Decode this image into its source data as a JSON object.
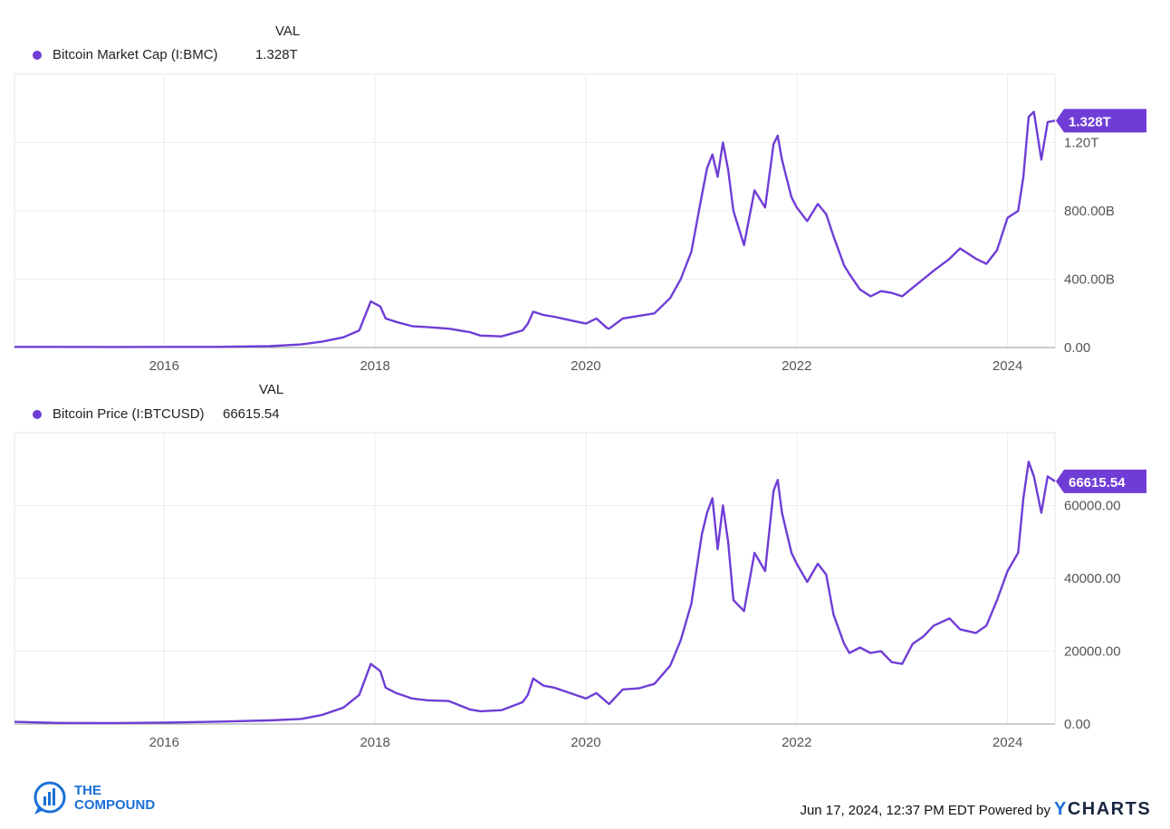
{
  "chart_data": [
    {
      "type": "line",
      "val_header": "VAL",
      "series": [
        {
          "name": "Bitcoin Market Cap (I:BMC)",
          "last_value_label": "1.328T",
          "color": "#6f3dd6",
          "x": [
            2014.58,
            2015.0,
            2015.5,
            2016.0,
            2016.5,
            2017.0,
            2017.3,
            2017.5,
            2017.7,
            2017.85,
            2017.96,
            2018.05,
            2018.1,
            2018.2,
            2018.35,
            2018.5,
            2018.7,
            2018.9,
            2019.0,
            2019.2,
            2019.4,
            2019.45,
            2019.5,
            2019.6,
            2019.7,
            2019.85,
            2020.0,
            2020.1,
            2020.2,
            2020.22,
            2020.35,
            2020.5,
            2020.65,
            2020.8,
            2020.9,
            2021.0,
            2021.1,
            2021.15,
            2021.2,
            2021.25,
            2021.3,
            2021.35,
            2021.4,
            2021.5,
            2021.6,
            2021.7,
            2021.78,
            2021.82,
            2021.86,
            2021.95,
            2022.0,
            2022.1,
            2022.2,
            2022.28,
            2022.35,
            2022.45,
            2022.5,
            2022.6,
            2022.7,
            2022.8,
            2022.9,
            2023.0,
            2023.1,
            2023.2,
            2023.3,
            2023.45,
            2023.55,
            2023.7,
            2023.8,
            2023.9,
            2024.0,
            2024.1,
            2024.15,
            2024.2,
            2024.25,
            2024.32,
            2024.38,
            2024.45
          ],
          "values": [
            3.5,
            3.5,
            3.3,
            3.5,
            3.8,
            8,
            18,
            35,
            60,
            100,
            270,
            240,
            170,
            150,
            125,
            120,
            110,
            90,
            70,
            65,
            100,
            140,
            210,
            190,
            180,
            160,
            140,
            170,
            115,
            110,
            170,
            185,
            200,
            290,
            400,
            560,
            890,
            1050,
            1130,
            1000,
            1200,
            1040,
            800,
            600,
            920,
            820,
            1190,
            1240,
            1100,
            880,
            820,
            740,
            840,
            780,
            650,
            480,
            430,
            340,
            300,
            330,
            320,
            300,
            350,
            400,
            450,
            520,
            580,
            520,
            490,
            570,
            760,
            800,
            1000,
            1350,
            1380,
            1100,
            1320,
            1328
          ]
        }
      ],
      "x_ticks": [
        "2016",
        "2018",
        "2020",
        "2022",
        "2024"
      ],
      "x_tick_values": [
        2016,
        2018,
        2020,
        2022,
        2024
      ],
      "y_ticks": [
        "0.00",
        "400.00B",
        "800.00B",
        "1.20T"
      ],
      "y_tick_values": [
        0,
        400,
        800,
        1200
      ],
      "ylim": [
        0,
        1600
      ],
      "xlim": [
        2014.58,
        2024.45
      ],
      "grid": true
    },
    {
      "type": "line",
      "val_header": "VAL",
      "series": [
        {
          "name": "Bitcoin Price (I:BTCUSD)",
          "last_value_label": "66615.54",
          "color": "#6f3dd6",
          "x": [
            2014.58,
            2015.0,
            2015.5,
            2016.0,
            2016.5,
            2017.0,
            2017.3,
            2017.5,
            2017.7,
            2017.85,
            2017.96,
            2018.05,
            2018.1,
            2018.2,
            2018.35,
            2018.5,
            2018.7,
            2018.9,
            2019.0,
            2019.2,
            2019.4,
            2019.45,
            2019.5,
            2019.6,
            2019.7,
            2019.85,
            2020.0,
            2020.1,
            2020.2,
            2020.22,
            2020.35,
            2020.5,
            2020.65,
            2020.8,
            2020.9,
            2021.0,
            2021.1,
            2021.15,
            2021.2,
            2021.25,
            2021.3,
            2021.35,
            2021.4,
            2021.5,
            2021.6,
            2021.7,
            2021.78,
            2021.82,
            2021.86,
            2021.95,
            2022.0,
            2022.1,
            2022.2,
            2022.28,
            2022.35,
            2022.45,
            2022.5,
            2022.6,
            2022.7,
            2022.8,
            2022.9,
            2023.0,
            2023.1,
            2023.2,
            2023.3,
            2023.45,
            2023.55,
            2023.7,
            2023.8,
            2023.9,
            2024.0,
            2024.1,
            2024.15,
            2024.2,
            2024.25,
            2024.32,
            2024.38,
            2024.45
          ],
          "values": [
            600,
            300,
            250,
            400,
            650,
            1000,
            1400,
            2500,
            4500,
            8000,
            16500,
            14500,
            10000,
            8500,
            7000,
            6500,
            6300,
            4000,
            3500,
            3800,
            6000,
            8000,
            12500,
            10500,
            10000,
            8500,
            7000,
            8500,
            6000,
            5500,
            9500,
            9800,
            11000,
            16000,
            23000,
            33000,
            52000,
            58000,
            62000,
            48000,
            60000,
            50000,
            34000,
            31000,
            47000,
            42000,
            64000,
            67000,
            58000,
            47000,
            44000,
            39000,
            44000,
            41000,
            30000,
            22000,
            19500,
            21000,
            19500,
            20000,
            17000,
            16500,
            22000,
            24000,
            27000,
            29000,
            26000,
            25000,
            27000,
            34000,
            42000,
            47000,
            62000,
            72000,
            68000,
            58000,
            68000,
            66615.54
          ]
        }
      ],
      "x_ticks": [
        "2016",
        "2018",
        "2020",
        "2022",
        "2024"
      ],
      "x_tick_values": [
        2016,
        2018,
        2020,
        2022,
        2024
      ],
      "y_ticks": [
        "0.00",
        "20000.00",
        "40000.00",
        "60000.00"
      ],
      "y_tick_values": [
        0,
        20000,
        40000,
        60000
      ],
      "ylim": [
        0,
        80000
      ],
      "xlim": [
        2014.58,
        2024.45
      ],
      "grid": true
    }
  ],
  "footer": {
    "date_text": "Jun 17, 2024, 12:37 PM EDT Powered by",
    "brand_y": "Y",
    "brand_rest": "CHARTS",
    "logo_line1": "THE",
    "logo_line2": "COMPOUND"
  }
}
